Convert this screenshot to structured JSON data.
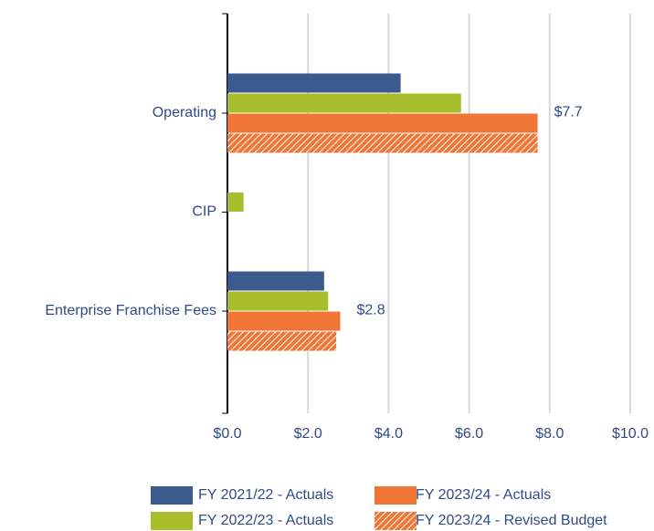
{
  "chart_data": {
    "type": "hbar",
    "categories": [
      "Operating",
      "CIP",
      "Enterprise Franchise Fees"
    ],
    "series": [
      {
        "name": "FY 2021/22 - Actuals",
        "color": "#3b5b8e",
        "values": [
          4.3,
          null,
          2.4
        ]
      },
      {
        "name": "FY 2022/23 - Actuals",
        "color": "#a8bd2c",
        "values": [
          5.8,
          0.4,
          2.5
        ]
      },
      {
        "name": "FY 2023/24 - Actuals",
        "color": "#f07636",
        "values": [
          7.7,
          null,
          2.8
        ],
        "value_labels": [
          "$7.7",
          null,
          "$2.8"
        ]
      },
      {
        "name": "FY 2023/24 - Revised Budget",
        "color": "#f07636",
        "pattern": "hatch",
        "values": [
          7.7,
          null,
          2.7
        ]
      }
    ],
    "xlim": [
      0,
      10
    ],
    "xticks": [
      {
        "value": 0,
        "label": "$0.0"
      },
      {
        "value": 2,
        "label": "$2.0"
      },
      {
        "value": 4,
        "label": "$4.0"
      },
      {
        "value": 6,
        "label": "$6.0"
      },
      {
        "value": 8,
        "label": "$8.0"
      },
      {
        "value": 10,
        "label": "$10.0"
      }
    ],
    "grid": true,
    "legend": "bottom"
  }
}
